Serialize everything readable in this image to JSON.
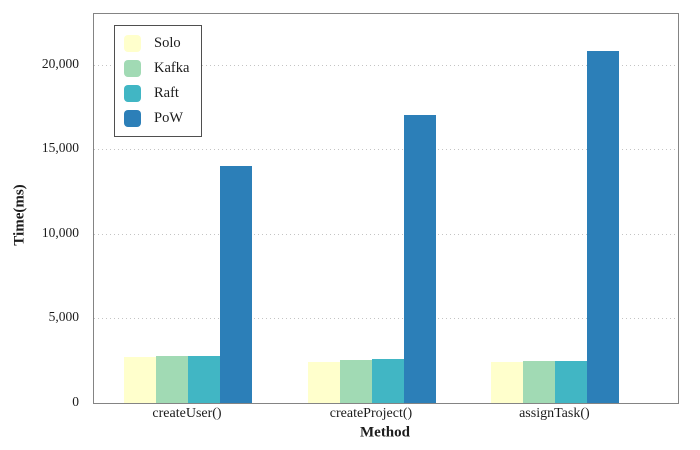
{
  "chart_data": {
    "type": "bar",
    "title": "",
    "xlabel": "Method",
    "ylabel": "Time(ms)",
    "categories": [
      "createUser()",
      "createProject()",
      "assignTask()"
    ],
    "series": [
      {
        "name": "Solo",
        "color": "#ffffcc",
        "values": [
          2750,
          2450,
          2450
        ]
      },
      {
        "name": "Kafka",
        "color": "#a1dab4",
        "values": [
          2780,
          2520,
          2470
        ]
      },
      {
        "name": "Raft",
        "color": "#41b6c4",
        "values": [
          2760,
          2590,
          2500
        ]
      },
      {
        "name": "PoW",
        "color": "#2c7fb8",
        "values": [
          14000,
          17000,
          20800
        ]
      }
    ],
    "ylim": [
      0,
      23000
    ],
    "yticks": [
      {
        "value": 0,
        "label": "0"
      },
      {
        "value": 5000,
        "label": "5,000"
      },
      {
        "value": 10000,
        "label": "10,000"
      },
      {
        "value": 15000,
        "label": "15,000"
      },
      {
        "value": 20000,
        "label": "20,000"
      }
    ],
    "grid": "horizontal-dotted",
    "legend_position": "top-left-inside",
    "colors": {
      "axis_frame": "#848484",
      "grid_line": "#c4c4c4",
      "legend_border": "#4f4f4f",
      "text": "#1c1c1c",
      "background": "#ffffff"
    }
  }
}
